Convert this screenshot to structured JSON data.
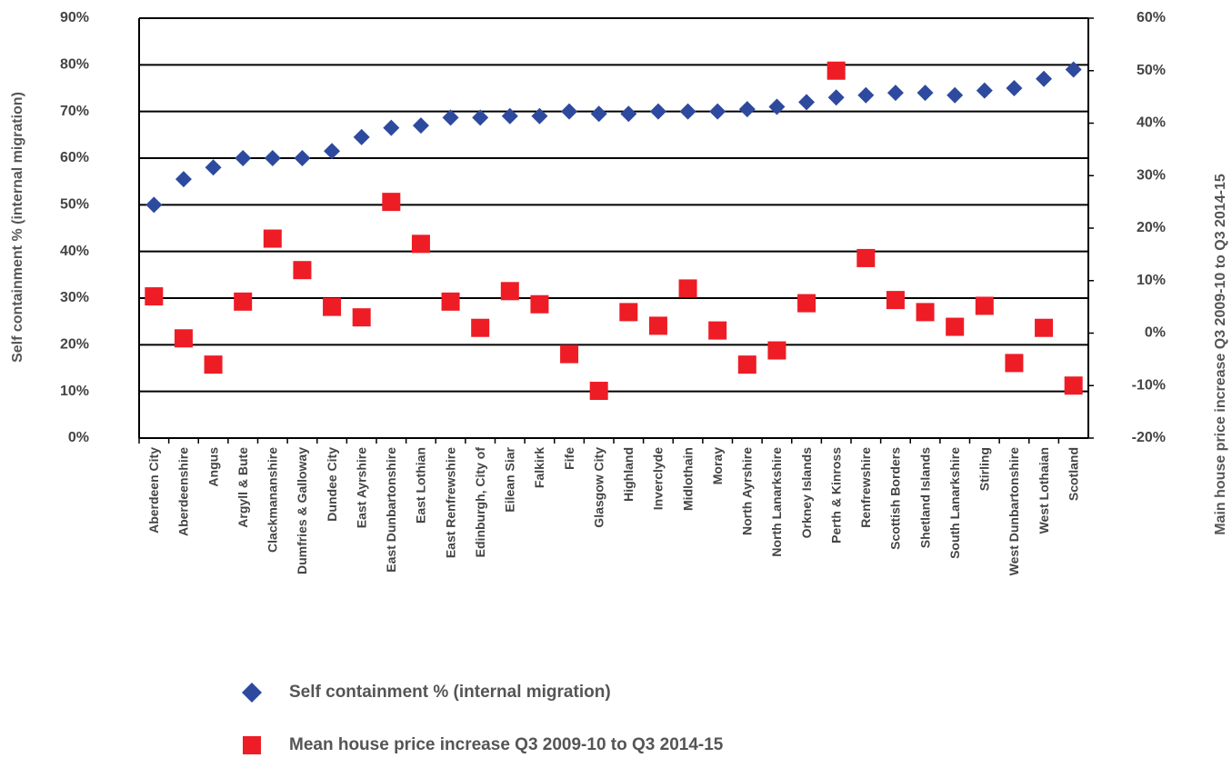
{
  "chart_data": {
    "type": "scatter",
    "categories": [
      "Aberdeen City",
      "Aberdeenshire",
      "Angus",
      "Argyll & Bute",
      "Clackmananshire",
      "Dumfries & Galloway",
      "Dundee City",
      "East Ayrshire",
      "East Dunbartonshire",
      "East Lothian",
      "East Renfrewshire",
      "Edinburgh, City of",
      "Eilean Siar",
      "Falkirk",
      "Fife",
      "Glasgow City",
      "Highland",
      "Inverclyde",
      "Midlothain",
      "Moray",
      "North Ayrshire",
      "North Lanarkshire",
      "Orkney Islands",
      "Perth & Kinross",
      "Renfrewshire",
      "Scottish Borders",
      "Shetland Islands",
      "South Lanarkshire",
      "Stirling",
      "West Dunbartonshire",
      "West Lothaian",
      "Scotland"
    ],
    "series": [
      {
        "name": "Self containment % (internal migration)",
        "color": "#2e4a9e",
        "marker": "diamond",
        "values": [
          50,
          55.5,
          58,
          60,
          60,
          60,
          61.5,
          64.5,
          66.5,
          67,
          68.7,
          68.7,
          69,
          69,
          70,
          69.5,
          69.5,
          70,
          70,
          70,
          70.5,
          71,
          72,
          73,
          73.5,
          74,
          74,
          73.5,
          74.5,
          75,
          77,
          79
        ]
      },
      {
        "name": "Mean house price increase Q3 2009-10 to Q3 2014-15",
        "color": "#ee1c25",
        "marker": "square",
        "axis": "y2",
        "values": [
          7,
          -1,
          -6,
          6,
          18,
          12,
          5,
          3,
          25,
          17,
          6,
          1,
          8,
          5.5,
          -4,
          -11,
          4,
          1.4,
          8.5,
          0.5,
          -6,
          -3.3,
          5.7,
          50,
          14.3,
          6.3,
          4,
          1.2,
          5.2,
          -5.7,
          1,
          -10
        ]
      }
    ],
    "ylabel": "Self containment % (internal migration)",
    "y2label": "Main house price increase Q3 2009-10 to Q3 2014-15",
    "ylim": [
      0,
      90
    ],
    "yticks": [
      {
        "value": 0,
        "label": "0%"
      },
      {
        "value": 10,
        "label": "10%"
      },
      {
        "value": 20,
        "label": "20%"
      },
      {
        "value": 30,
        "label": "30%"
      },
      {
        "value": 40,
        "label": "40%"
      },
      {
        "value": 50,
        "label": "50%"
      },
      {
        "value": 60,
        "label": "60%"
      },
      {
        "value": 70,
        "label": "70%"
      },
      {
        "value": 80,
        "label": "80%"
      },
      {
        "value": 90,
        "label": "90%"
      }
    ],
    "y2lim": [
      -20,
      60
    ],
    "y2ticks": [
      {
        "value": -20,
        "label": "-20%"
      },
      {
        "value": -10,
        "label": "-10%"
      },
      {
        "value": 0,
        "label": "0%"
      },
      {
        "value": 10,
        "label": "10%"
      },
      {
        "value": 20,
        "label": "20%"
      },
      {
        "value": 30,
        "label": "30%"
      },
      {
        "value": 40,
        "label": "40%"
      },
      {
        "value": 50,
        "label": "50%"
      },
      {
        "value": 60,
        "label": "60%"
      }
    ],
    "grid": true,
    "legend": "bottom"
  }
}
